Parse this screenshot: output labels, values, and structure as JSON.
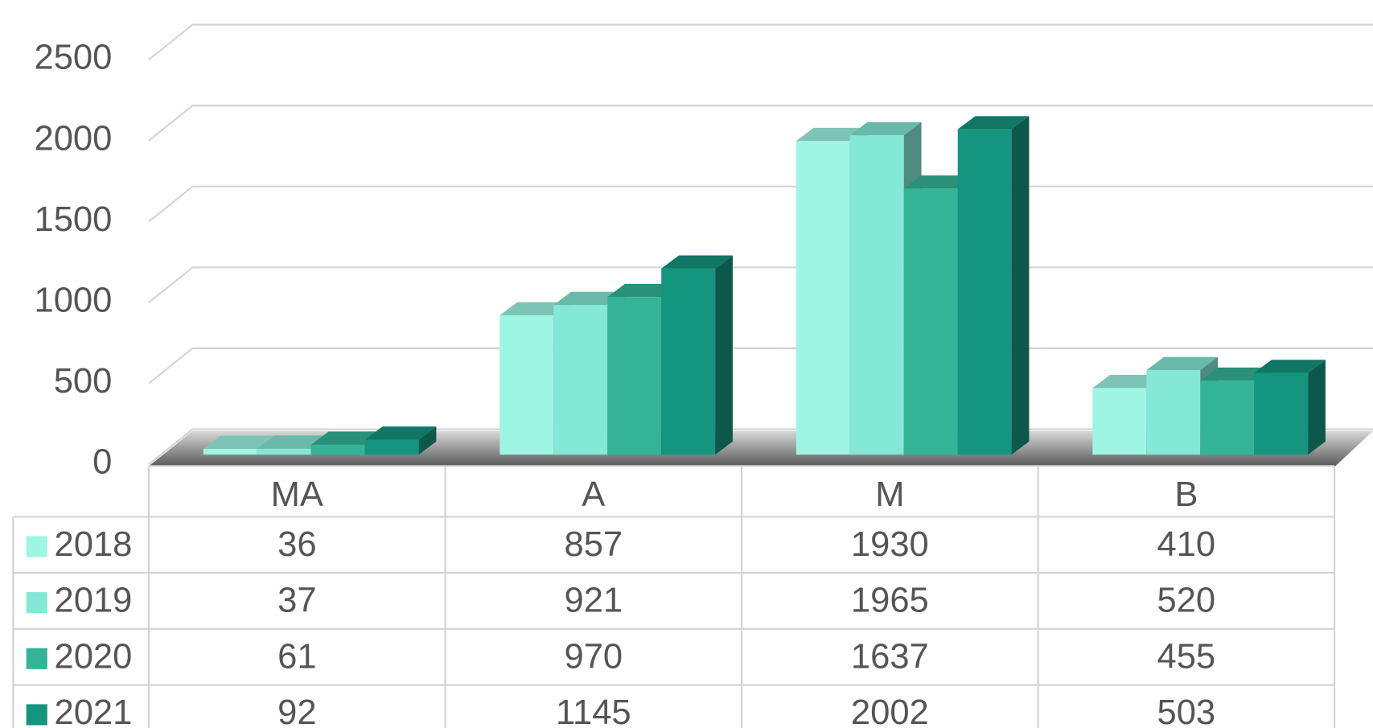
{
  "chart_data": {
    "type": "bar",
    "categories": [
      "MA",
      "A",
      "M",
      "B"
    ],
    "series": [
      {
        "name": "2018",
        "color": "#9ef5e4",
        "values": [
          36,
          857,
          1930,
          410
        ]
      },
      {
        "name": "2019",
        "color": "#84e8d6",
        "values": [
          37,
          921,
          1965,
          520
        ]
      },
      {
        "name": "2020",
        "color": "#34b496",
        "values": [
          61,
          970,
          1637,
          455
        ]
      },
      {
        "name": "2021",
        "color": "#14957e",
        "values": [
          92,
          1145,
          2002,
          503
        ]
      }
    ],
    "ylim": [
      0,
      2500
    ],
    "yticks": [
      0,
      500,
      1000,
      1500,
      2000,
      2500
    ],
    "grid": true
  }
}
